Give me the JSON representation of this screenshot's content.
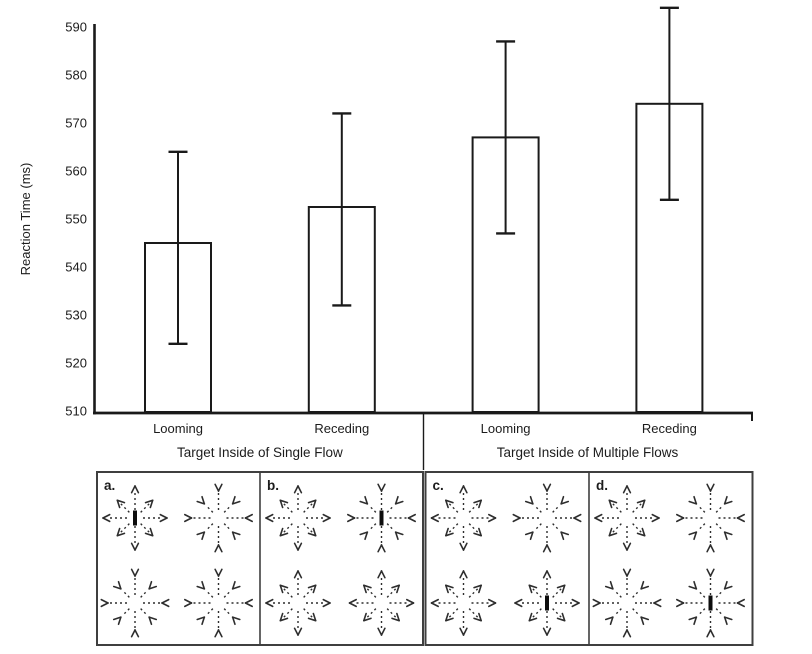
{
  "figure": {
    "background": "#ffffff",
    "ink": "#1a1a1a",
    "flow_ink": "#2e2e2e",
    "panel_border": "#3f3f3f"
  },
  "chart_data": {
    "type": "bar",
    "title": "",
    "ylabel": "Reaction Time (ms)",
    "xlabel": "",
    "ylim": [
      510,
      590
    ],
    "yticks": [
      510,
      520,
      530,
      540,
      550,
      560,
      570,
      580,
      590
    ],
    "grid": false,
    "legend": null,
    "categories": [
      "Looming",
      "Receding",
      "Looming",
      "Receding"
    ],
    "values": [
      545,
      552.5,
      567,
      574
    ],
    "error_low": [
      524,
      532,
      547,
      554
    ],
    "error_high": [
      564,
      572,
      587,
      594
    ],
    "bar_fill": "#ffffff",
    "bar_stroke": "#1a1a1a",
    "groups": [
      {
        "label": "Target Inside of Single Flow",
        "bar_indices": [
          0,
          1
        ]
      },
      {
        "label": "Target Inside of Multiple Flows",
        "bar_indices": [
          2,
          3
        ]
      }
    ]
  },
  "flow_panels": {
    "description_icons": [
      "radial-flow-icon"
    ],
    "items": [
      {
        "label": "a.",
        "flows": [
          "expand-target",
          "contract",
          "contract",
          "contract"
        ]
      },
      {
        "label": "b.",
        "flows": [
          "expand",
          "contract-target",
          "expand",
          "expand"
        ]
      },
      {
        "label": "c.",
        "flows": [
          "expand",
          "contract",
          "expand",
          "expand-target"
        ]
      },
      {
        "label": "d.",
        "flows": [
          "expand",
          "contract",
          "contract",
          "contract-target"
        ]
      }
    ]
  }
}
